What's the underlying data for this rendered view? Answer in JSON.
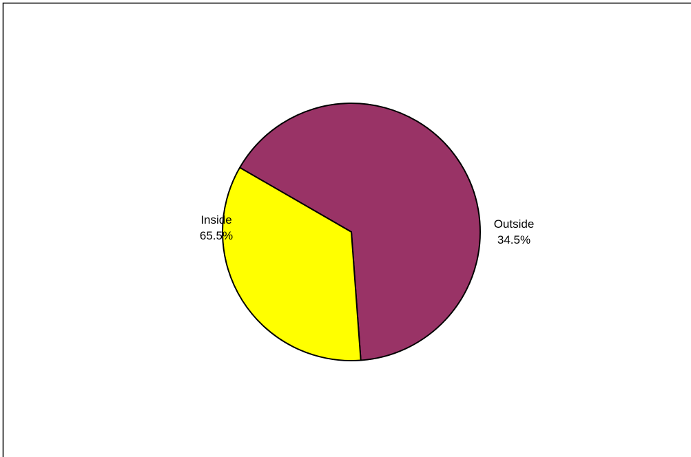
{
  "chart_data": {
    "type": "pie",
    "title": "",
    "slices": [
      {
        "label": "Inside",
        "value": 65.5,
        "value_text": "65.5%",
        "color": "#993366"
      },
      {
        "label": "Outside",
        "value": 34.5,
        "value_text": "34.5%",
        "color": "#FFFF00"
      }
    ],
    "start_angle_deg": 300.0,
    "direction": "clockwise",
    "legend": "none",
    "outline_color": "#000000",
    "background_color": "#FFFFFF",
    "frame_color": "#000000"
  }
}
